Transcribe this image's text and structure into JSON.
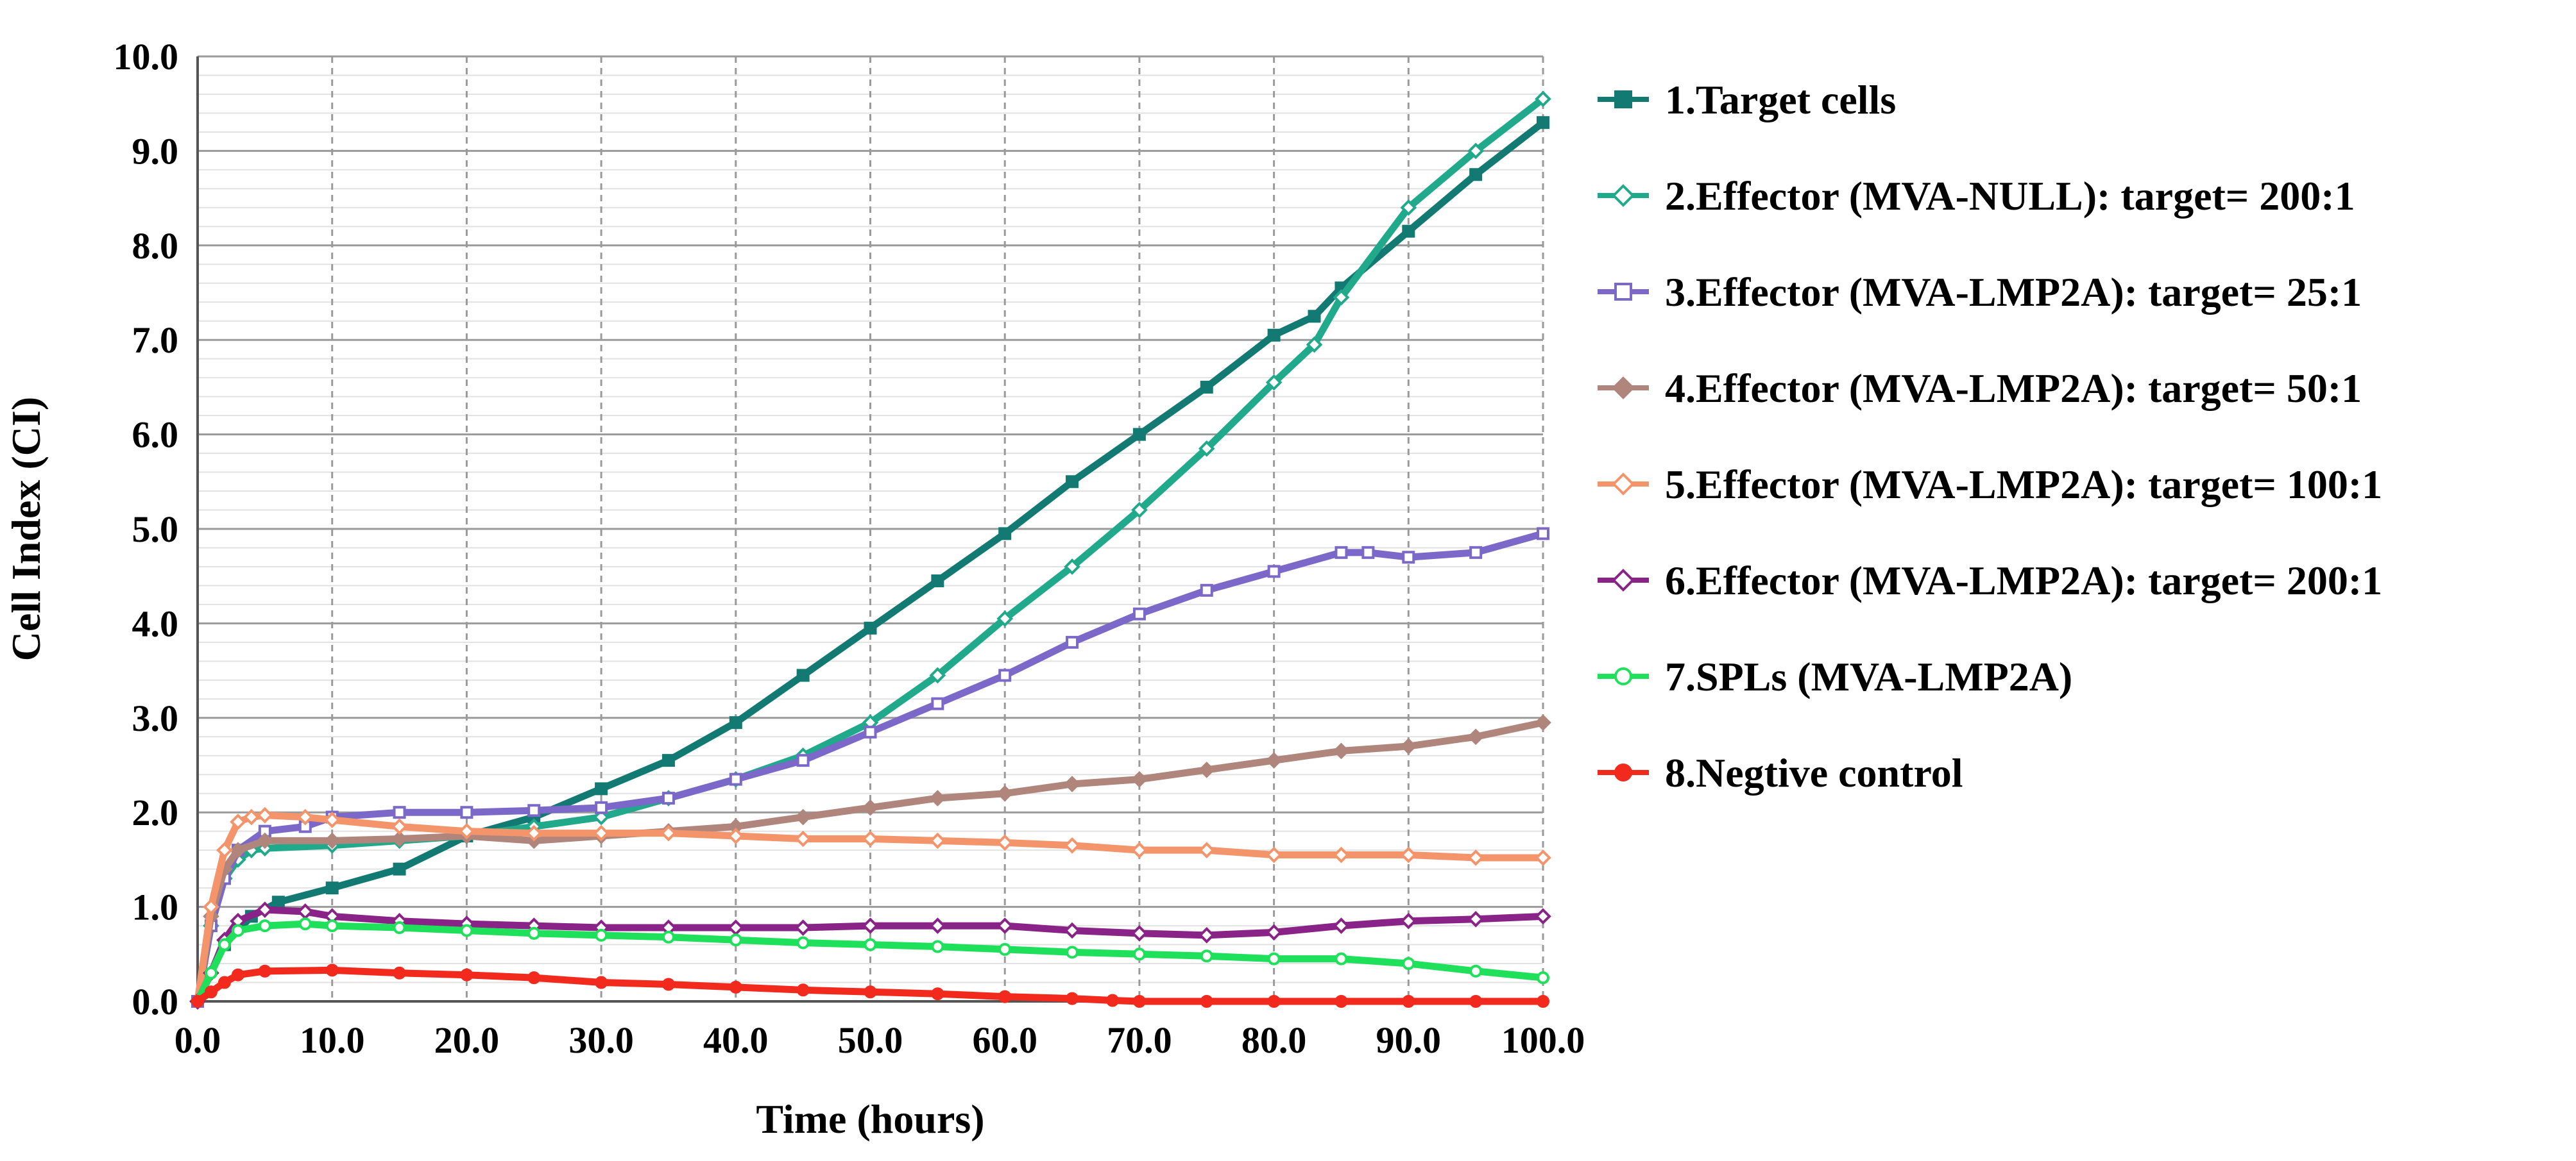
{
  "chart_data": {
    "type": "line",
    "title": "",
    "xlabel": "Time (hours)",
    "ylabel": "Cell Index (CI)",
    "xlim": [
      0,
      100
    ],
    "ylim": [
      0,
      10
    ],
    "x_ticks": [
      "0.0",
      "10.0",
      "20.0",
      "30.0",
      "40.0",
      "50.0",
      "60.0",
      "70.0",
      "80.0",
      "90.0",
      "100.0"
    ],
    "y_ticks": [
      "0.0",
      "1.0",
      "2.0",
      "3.0",
      "4.0",
      "5.0",
      "6.0",
      "7.0",
      "8.0",
      "9.0",
      "10.0"
    ],
    "grid": "on",
    "legend_position": "right",
    "series": [
      {
        "name": "1.Target cells",
        "color": "#127A72",
        "marker": "square-filled",
        "x": [
          0,
          2,
          4,
          6,
          10,
          15,
          20,
          25,
          30,
          35,
          40,
          45,
          50,
          55,
          60,
          65,
          70,
          75,
          80,
          83,
          85,
          90,
          95,
          100
        ],
        "y": [
          0,
          0.6,
          0.9,
          1.05,
          1.2,
          1.4,
          1.75,
          1.95,
          2.25,
          2.55,
          2.95,
          3.45,
          3.95,
          4.45,
          4.95,
          5.5,
          6.0,
          6.5,
          7.05,
          7.25,
          7.55,
          8.15,
          8.75,
          9.3
        ]
      },
      {
        "name": "2.Effector (MVA-NULL): target= 200:1",
        "color": "#20A98A",
        "marker": "diamond-open",
        "x": [
          0,
          1,
          2,
          3,
          4,
          5,
          10,
          15,
          20,
          25,
          30,
          35,
          40,
          45,
          50,
          55,
          60,
          65,
          70,
          75,
          80,
          83,
          85,
          90,
          95,
          100
        ],
        "y": [
          0,
          0.8,
          1.3,
          1.5,
          1.6,
          1.62,
          1.65,
          1.7,
          1.75,
          1.85,
          1.95,
          2.15,
          2.35,
          2.6,
          2.95,
          3.45,
          4.05,
          4.6,
          5.2,
          5.85,
          6.55,
          6.95,
          7.45,
          8.4,
          9.0,
          9.55
        ]
      },
      {
        "name": "3.Effector (MVA-LMP2A): target= 25:1",
        "color": "#7B68C8",
        "marker": "square-open",
        "x": [
          0,
          1,
          2,
          3,
          5,
          8,
          10,
          15,
          20,
          25,
          30,
          35,
          40,
          45,
          50,
          55,
          60,
          65,
          70,
          75,
          80,
          85,
          87,
          90,
          95,
          100
        ],
        "y": [
          0,
          0.8,
          1.3,
          1.6,
          1.8,
          1.85,
          1.95,
          2.0,
          2.0,
          2.02,
          2.05,
          2.15,
          2.35,
          2.55,
          2.85,
          3.15,
          3.45,
          3.8,
          4.1,
          4.35,
          4.55,
          4.75,
          4.75,
          4.7,
          4.75,
          4.95
        ]
      },
      {
        "name": "4.Effector (MVA-LMP2A): target= 50:1",
        "color": "#B0857B",
        "marker": "diamond-filled",
        "x": [
          0,
          1,
          2,
          3,
          5,
          10,
          15,
          20,
          25,
          30,
          35,
          40,
          45,
          50,
          55,
          60,
          65,
          70,
          75,
          80,
          85,
          90,
          95,
          100
        ],
        "y": [
          0,
          0.9,
          1.4,
          1.6,
          1.7,
          1.7,
          1.72,
          1.75,
          1.7,
          1.75,
          1.8,
          1.85,
          1.95,
          2.05,
          2.15,
          2.2,
          2.3,
          2.35,
          2.45,
          2.55,
          2.65,
          2.7,
          2.8,
          2.95
        ]
      },
      {
        "name": "5.Effector (MVA-LMP2A): target= 100:1",
        "color": "#F4946B",
        "marker": "diamond-open",
        "x": [
          0,
          1,
          2,
          3,
          4,
          5,
          8,
          10,
          15,
          20,
          25,
          30,
          35,
          40,
          45,
          50,
          55,
          60,
          65,
          70,
          75,
          80,
          85,
          90,
          95,
          100
        ],
        "y": [
          0,
          1.0,
          1.6,
          1.9,
          1.95,
          1.97,
          1.95,
          1.92,
          1.85,
          1.8,
          1.78,
          1.78,
          1.78,
          1.75,
          1.72,
          1.72,
          1.7,
          1.68,
          1.65,
          1.6,
          1.6,
          1.55,
          1.55,
          1.55,
          1.52,
          1.52
        ]
      },
      {
        "name": "6.Effector (MVA-LMP2A): target= 200:1",
        "color": "#8A2387",
        "marker": "diamond-open",
        "x": [
          0,
          1,
          2,
          3,
          5,
          8,
          10,
          15,
          20,
          25,
          30,
          35,
          40,
          45,
          50,
          55,
          60,
          65,
          70,
          75,
          80,
          85,
          90,
          95,
          100
        ],
        "y": [
          0,
          0.3,
          0.65,
          0.85,
          0.97,
          0.95,
          0.9,
          0.85,
          0.82,
          0.8,
          0.78,
          0.78,
          0.78,
          0.78,
          0.8,
          0.8,
          0.8,
          0.75,
          0.72,
          0.7,
          0.73,
          0.8,
          0.85,
          0.87,
          0.9
        ]
      },
      {
        "name": "7.SPLs (MVA-LMP2A)",
        "color": "#1FE05A",
        "marker": "circle-open",
        "x": [
          0,
          1,
          2,
          3,
          5,
          8,
          10,
          15,
          20,
          25,
          30,
          35,
          40,
          45,
          50,
          55,
          60,
          65,
          70,
          75,
          80,
          85,
          90,
          95,
          100
        ],
        "y": [
          0,
          0.3,
          0.6,
          0.75,
          0.8,
          0.82,
          0.8,
          0.78,
          0.75,
          0.72,
          0.7,
          0.68,
          0.65,
          0.62,
          0.6,
          0.58,
          0.55,
          0.52,
          0.5,
          0.48,
          0.45,
          0.45,
          0.4,
          0.32,
          0.25
        ]
      },
      {
        "name": "8.Negtive control",
        "color": "#F22A1E",
        "marker": "circle-filled",
        "x": [
          0,
          1,
          2,
          3,
          5,
          10,
          15,
          20,
          25,
          30,
          35,
          40,
          45,
          50,
          55,
          60,
          65,
          68,
          70,
          75,
          80,
          85,
          90,
          95,
          100
        ],
        "y": [
          0,
          0.1,
          0.2,
          0.28,
          0.32,
          0.33,
          0.3,
          0.28,
          0.25,
          0.2,
          0.18,
          0.15,
          0.12,
          0.1,
          0.08,
          0.05,
          0.03,
          0.01,
          0,
          0,
          0,
          0,
          0,
          0,
          0
        ]
      }
    ]
  }
}
